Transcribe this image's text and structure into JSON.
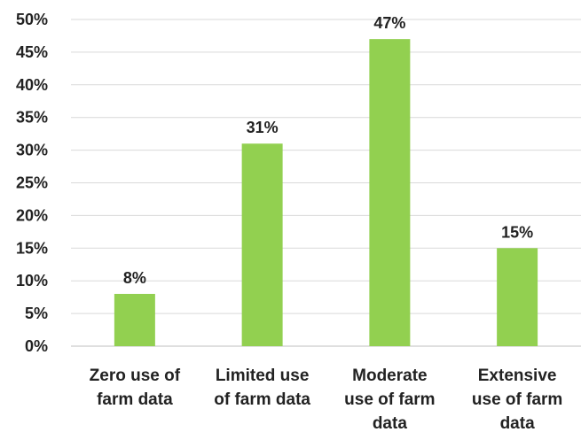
{
  "chart_data": {
    "type": "bar",
    "title": "",
    "xlabel": "",
    "ylabel": "",
    "categories": [
      [
        "Zero use of",
        "farm data"
      ],
      [
        "Limited use",
        "of farm data"
      ],
      [
        "Moderate",
        "use of farm",
        "data"
      ],
      [
        "Extensive",
        "use of farm",
        "data"
      ]
    ],
    "values": [
      8,
      31,
      47,
      15
    ],
    "data_labels": [
      "8%",
      "31%",
      "47%",
      "15%"
    ],
    "ylim": [
      0,
      50
    ],
    "y_ticks": [
      0,
      5,
      10,
      15,
      20,
      25,
      30,
      35,
      40,
      45,
      50
    ],
    "y_tick_labels": [
      "0%",
      "5%",
      "10%",
      "15%",
      "20%",
      "25%",
      "30%",
      "35%",
      "40%",
      "45%",
      "50%"
    ],
    "grid": true,
    "legend": "none",
    "bar_color": "#92d050"
  }
}
